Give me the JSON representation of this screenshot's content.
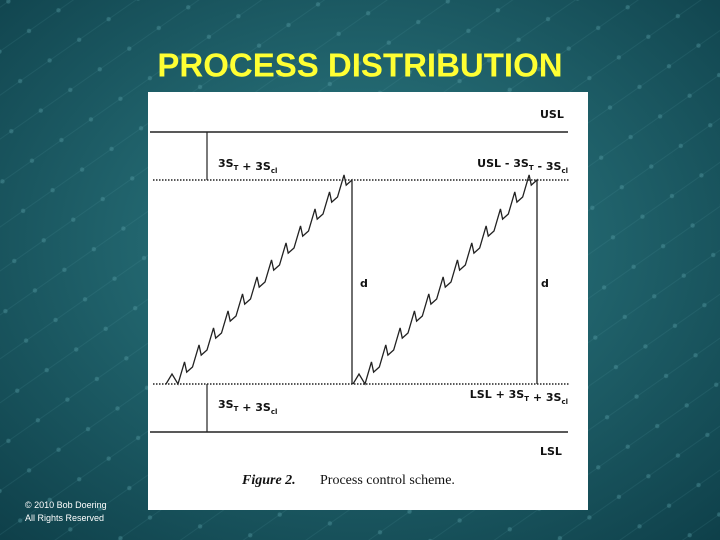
{
  "title": "PROCESS DISTRIBUTION",
  "figure": {
    "labels": [
      {
        "name": "usl",
        "parts": [
          {
            "t": "USL"
          }
        ]
      },
      {
        "name": "upper-left",
        "parts": [
          {
            "t": "3S",
            "sub": "T"
          },
          {
            "t": " + 3S",
            "sub": "cl"
          }
        ]
      },
      {
        "name": "upper-right",
        "parts": [
          {
            "t": "USL - 3S",
            "sub": "T"
          },
          {
            "t": " - 3S",
            "sub": "cl"
          }
        ]
      },
      {
        "name": "d-left",
        "parts": [
          {
            "t": "d"
          }
        ]
      },
      {
        "name": "d-right",
        "parts": [
          {
            "t": "d"
          }
        ]
      },
      {
        "name": "lower-left",
        "parts": [
          {
            "t": "3S",
            "sub": "T"
          },
          {
            "t": " + 3S",
            "sub": "cl"
          }
        ]
      },
      {
        "name": "lower-right",
        "parts": [
          {
            "t": "LSL + 3S",
            "sub": "T"
          },
          {
            "t": " + 3S",
            "sub": "cl"
          }
        ]
      },
      {
        "name": "lsl",
        "parts": [
          {
            "t": "LSL"
          }
        ]
      }
    ],
    "caption_label": "Figure 2.",
    "caption_text": "Process control scheme."
  },
  "footer": [
    "© 2010 Bob Doering",
    "All Rights Reserved"
  ]
}
